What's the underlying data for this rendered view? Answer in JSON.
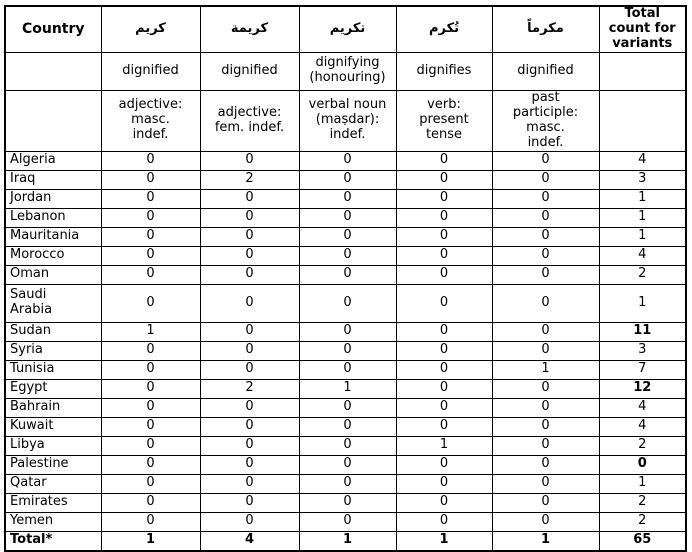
{
  "table": {
    "title_semantic": "Frequency of Arabic variants of the root k-r-m by country",
    "header": {
      "country_label": "Country",
      "total_label": "Total\ncount for\nvariants",
      "variants": [
        {
          "arabic": "كريم",
          "gloss": "dignified",
          "grammar": "adjective:\nmasc.\nindef."
        },
        {
          "arabic": "كريمة",
          "gloss": "dignified",
          "grammar": "adjective:\nfem. indef."
        },
        {
          "arabic": "تكريم",
          "gloss": "dignifying\n(honouring)",
          "grammar": "verbal noun\n(maṣdar):\nindef."
        },
        {
          "arabic": "تُكرم",
          "gloss": "dignifies",
          "grammar": "verb:\npresent\ntense"
        },
        {
          "arabic": "مكرماً",
          "gloss": "dignified",
          "grammar": "past\nparticiple:\nmasc.\nindef."
        }
      ]
    },
    "rows": [
      {
        "country": "Algeria",
        "values": [
          0,
          0,
          0,
          0,
          0
        ],
        "total": "4",
        "total_bold": false,
        "double": false,
        "bold_row": false
      },
      {
        "country": "Iraq",
        "values": [
          0,
          2,
          0,
          0,
          0
        ],
        "total": "3",
        "total_bold": false,
        "double": false,
        "bold_row": false
      },
      {
        "country": "Jordan",
        "values": [
          0,
          0,
          0,
          0,
          0
        ],
        "total": "1",
        "total_bold": false,
        "double": false,
        "bold_row": false
      },
      {
        "country": "Lebanon",
        "values": [
          0,
          0,
          0,
          0,
          0
        ],
        "total": "1",
        "total_bold": false,
        "double": false,
        "bold_row": false
      },
      {
        "country": "Mauritania",
        "values": [
          0,
          0,
          0,
          0,
          0
        ],
        "total": "1",
        "total_bold": false,
        "double": false,
        "bold_row": false
      },
      {
        "country": "Morocco",
        "values": [
          0,
          0,
          0,
          0,
          0
        ],
        "total": "4",
        "total_bold": false,
        "double": false,
        "bold_row": false
      },
      {
        "country": "Oman",
        "values": [
          0,
          0,
          0,
          0,
          0
        ],
        "total": "2",
        "total_bold": false,
        "double": false,
        "bold_row": false
      },
      {
        "country": "Saudi\nArabia",
        "values": [
          0,
          0,
          0,
          0,
          0
        ],
        "total": "1",
        "total_bold": false,
        "double": true,
        "bold_row": false
      },
      {
        "country": "Sudan",
        "values": [
          1,
          0,
          0,
          0,
          0
        ],
        "total": "11",
        "total_bold": true,
        "double": false,
        "bold_row": false
      },
      {
        "country": "Syria",
        "values": [
          0,
          0,
          0,
          0,
          0
        ],
        "total": "3",
        "total_bold": false,
        "double": false,
        "bold_row": false
      },
      {
        "country": "Tunisia",
        "values": [
          0,
          0,
          0,
          0,
          1
        ],
        "total": "7",
        "total_bold": false,
        "double": false,
        "bold_row": false
      },
      {
        "country": "Egypt",
        "values": [
          0,
          2,
          1,
          0,
          0
        ],
        "total": "12",
        "total_bold": true,
        "double": false,
        "bold_row": false
      },
      {
        "country": "Bahrain",
        "values": [
          0,
          0,
          0,
          0,
          0
        ],
        "total": "4",
        "total_bold": false,
        "double": false,
        "bold_row": false
      },
      {
        "country": "Kuwait",
        "values": [
          0,
          0,
          0,
          0,
          0
        ],
        "total": "4",
        "total_bold": false,
        "double": false,
        "bold_row": false
      },
      {
        "country": "Libya",
        "values": [
          0,
          0,
          0,
          1,
          0
        ],
        "total": "2",
        "total_bold": false,
        "double": false,
        "bold_row": false
      },
      {
        "country": "Palestine",
        "values": [
          0,
          0,
          0,
          0,
          0
        ],
        "total": "0",
        "total_bold": true,
        "double": false,
        "bold_row": false
      },
      {
        "country": "Qatar",
        "values": [
          0,
          0,
          0,
          0,
          0
        ],
        "total": "1",
        "total_bold": false,
        "double": false,
        "bold_row": false
      },
      {
        "country": "Emirates",
        "values": [
          0,
          0,
          0,
          0,
          0
        ],
        "total": "2",
        "total_bold": false,
        "double": false,
        "bold_row": false
      },
      {
        "country": "Yemen",
        "values": [
          0,
          0,
          0,
          0,
          0
        ],
        "total": "2",
        "total_bold": false,
        "double": false,
        "bold_row": false
      },
      {
        "country": "Total*",
        "values": [
          1,
          4,
          1,
          1,
          1
        ],
        "total": "65",
        "total_bold": true,
        "double": false,
        "bold_row": true
      }
    ]
  }
}
